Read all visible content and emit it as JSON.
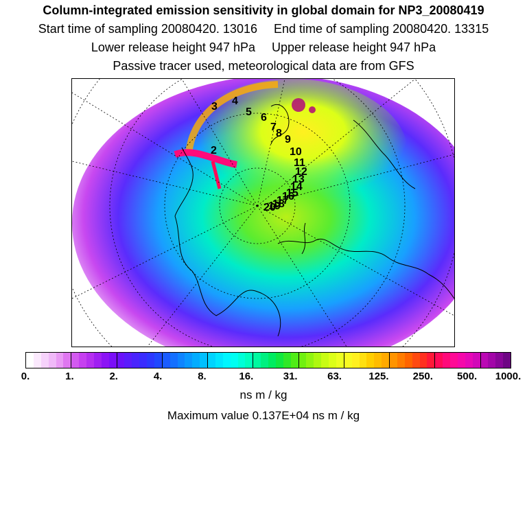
{
  "header": {
    "title": "Column-integrated emission sensitivity in global domain for NP3_20080419",
    "start_label": "Start time of sampling 20080420. 13016",
    "end_label": "End time of sampling 20080420. 13315",
    "lower_label": "Lower release height  947 hPa",
    "upper_label": "Upper release height  947 hPa",
    "tracer_note": "Passive tracer used, meteorological data are from GFS"
  },
  "map": {
    "trajectory_labels": [
      "2",
      "3",
      "4",
      "5",
      "6",
      "7",
      "8",
      "9",
      "10",
      "11",
      "12",
      "13",
      "14",
      "15",
      "16",
      "17",
      "18",
      "19",
      "20"
    ]
  },
  "colorbar": {
    "tick_labels": [
      "0.",
      "1.",
      "2.",
      "4.",
      "8.",
      "16.",
      "31.",
      "63.",
      "125.",
      "250.",
      "500.",
      "1000."
    ],
    "colors": [
      "#ffffff",
      "#fbe9fd",
      "#f6d2fb",
      "#f0b9f8",
      "#e99af4",
      "#df77f0",
      "#d35af0",
      "#c640f0",
      "#b52ff0",
      "#a01ff2",
      "#8c14f5",
      "#7a0ff8",
      "#6a12fa",
      "#5a1cfc",
      "#4a24fd",
      "#3a2cff",
      "#2c38ff",
      "#2048ff",
      "#1a5cff",
      "#1470ff",
      "#0e84ff",
      "#0898ff",
      "#02acff",
      "#00c0ff",
      "#00d4ff",
      "#00e6ff",
      "#00f6ff",
      "#00fff2",
      "#00ffd8",
      "#00ffbe",
      "#00f8a0",
      "#00f080",
      "#00ec60",
      "#10e840",
      "#30e828",
      "#50ec18",
      "#70f010",
      "#90f410",
      "#aef810",
      "#c8fc14",
      "#dcff18",
      "#ecff20",
      "#f8fa22",
      "#fff020",
      "#ffe010",
      "#ffce00",
      "#ffbc00",
      "#ffaa00",
      "#ff9400",
      "#ff7c00",
      "#ff6400",
      "#ff4a10",
      "#ff3020",
      "#ff1838",
      "#ff0a58",
      "#ff0a7a",
      "#ff0a96",
      "#f508aa",
      "#e608b6",
      "#d208b8",
      "#bb08b4",
      "#a206a8",
      "#880698",
      "#6e0684"
    ],
    "units": "ns m / kg"
  },
  "footer": {
    "max_label": "Maximum value  0.137E+04 ns m / kg"
  }
}
